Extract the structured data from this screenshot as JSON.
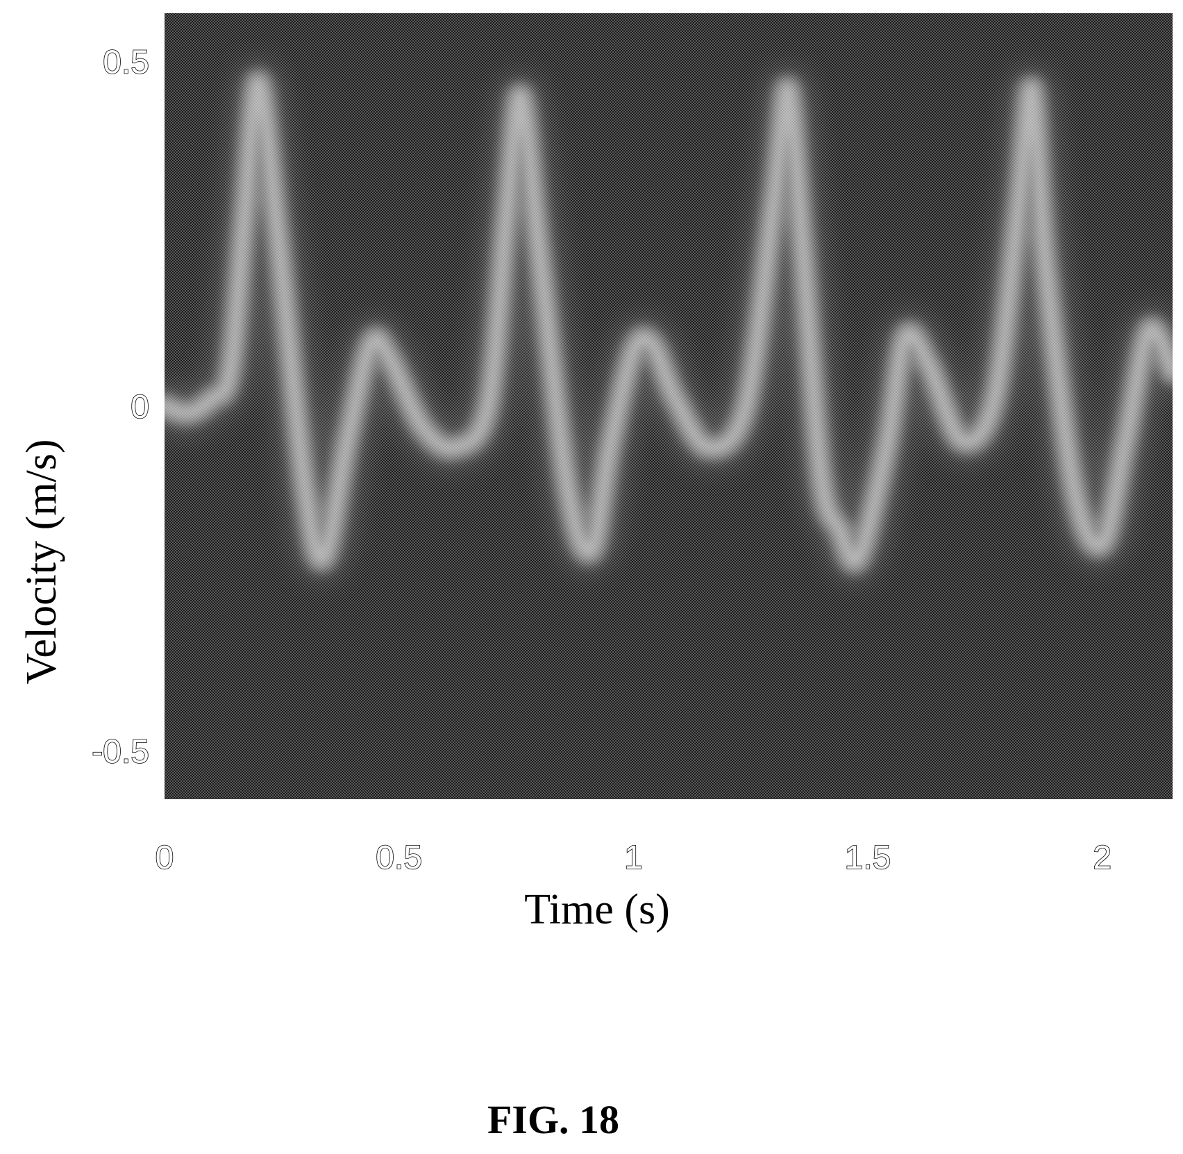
{
  "chart_data": {
    "type": "heatmap",
    "description_kind": "doppler-velocity-spectrogram",
    "xlabel": "Time (s)",
    "ylabel": "Velocity (m/s)",
    "xlim": [
      0,
      2.15
    ],
    "ylim": [
      -0.57,
      0.57
    ],
    "x_ticks": [
      {
        "value": 0,
        "label": "0"
      },
      {
        "value": 0.5,
        "label": "0.5"
      },
      {
        "value": 1,
        "label": "1"
      },
      {
        "value": 1.5,
        "label": "1.5"
      },
      {
        "value": 2,
        "label": "2"
      }
    ],
    "y_ticks": [
      {
        "value": 0.5,
        "label": "0.5"
      },
      {
        "value": 0,
        "label": "0"
      },
      {
        "value": -0.5,
        "label": "-0.5"
      }
    ],
    "grid": false,
    "legend": "none",
    "colormap": [
      "#202020",
      "#f4f4f4"
    ],
    "background_color": "#262626",
    "envelope": {
      "t": [
        0,
        0.05,
        0.1,
        0.14,
        0.17,
        0.2,
        0.24,
        0.3,
        0.34,
        0.39,
        0.44,
        0.48,
        0.55,
        0.62,
        0.69,
        0.73,
        0.76,
        0.8,
        0.86,
        0.91,
        0.95,
        1.0,
        1.04,
        1.09,
        1.16,
        1.24,
        1.3,
        1.33,
        1.36,
        1.4,
        1.44,
        1.48,
        1.54,
        1.58,
        1.63,
        1.7,
        1.77,
        1.82,
        1.85,
        1.88,
        1.94,
        2.0,
        2.05,
        2.1,
        2.15
      ],
      "v": [
        0.0,
        -0.01,
        0.01,
        0.05,
        0.27,
        0.47,
        0.26,
        -0.12,
        -0.22,
        -0.05,
        0.09,
        0.07,
        -0.03,
        -0.06,
        0.0,
        0.28,
        0.45,
        0.22,
        -0.12,
        -0.21,
        -0.06,
        0.08,
        0.09,
        0.01,
        -0.06,
        0.0,
        0.3,
        0.46,
        0.24,
        -0.1,
        -0.18,
        -0.22,
        -0.06,
        0.1,
        0.06,
        -0.05,
        0.01,
        0.28,
        0.46,
        0.2,
        -0.12,
        -0.2,
        -0.05,
        0.11,
        0.05
      ]
    }
  },
  "figure": {
    "caption": "FIG. 18"
  }
}
